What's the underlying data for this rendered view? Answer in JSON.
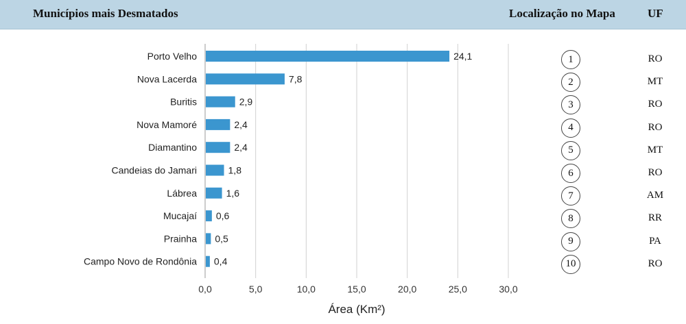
{
  "header": {
    "title": "Municípios mais Desmatados",
    "col_location": "Localização no Mapa",
    "col_uf": "UF"
  },
  "chart_data": {
    "type": "bar",
    "orientation": "horizontal",
    "categories": [
      "Porto Velho",
      "Nova Lacerda",
      "Buritis",
      "Nova Mamoré",
      "Diamantino",
      "Candeias do Jamari",
      "Lábrea",
      "Mucajaí",
      "Prainha",
      "Campo Novo de Rondônia"
    ],
    "values": [
      24.1,
      7.8,
      2.9,
      2.4,
      2.4,
      1.8,
      1.6,
      0.6,
      0.5,
      0.4
    ],
    "value_labels": [
      "24,1",
      "7,8",
      "2,9",
      "2,4",
      "2,4",
      "1,8",
      "1,6",
      "0,6",
      "0,5",
      "0,4"
    ],
    "xlabel": "Área (Km²)",
    "xlim": [
      0,
      30
    ],
    "xticks": [
      "0,0",
      "5,0",
      "10,0",
      "15,0",
      "20,0",
      "25,0",
      "30,0"
    ],
    "grid": true,
    "bar_color": "#3b96cf"
  },
  "table": {
    "locations": [
      "1",
      "2",
      "3",
      "4",
      "5",
      "6",
      "7",
      "8",
      "9",
      "10"
    ],
    "uf": [
      "RO",
      "MT",
      "RO",
      "RO",
      "MT",
      "RO",
      "AM",
      "RR",
      "PA",
      "RO"
    ]
  }
}
